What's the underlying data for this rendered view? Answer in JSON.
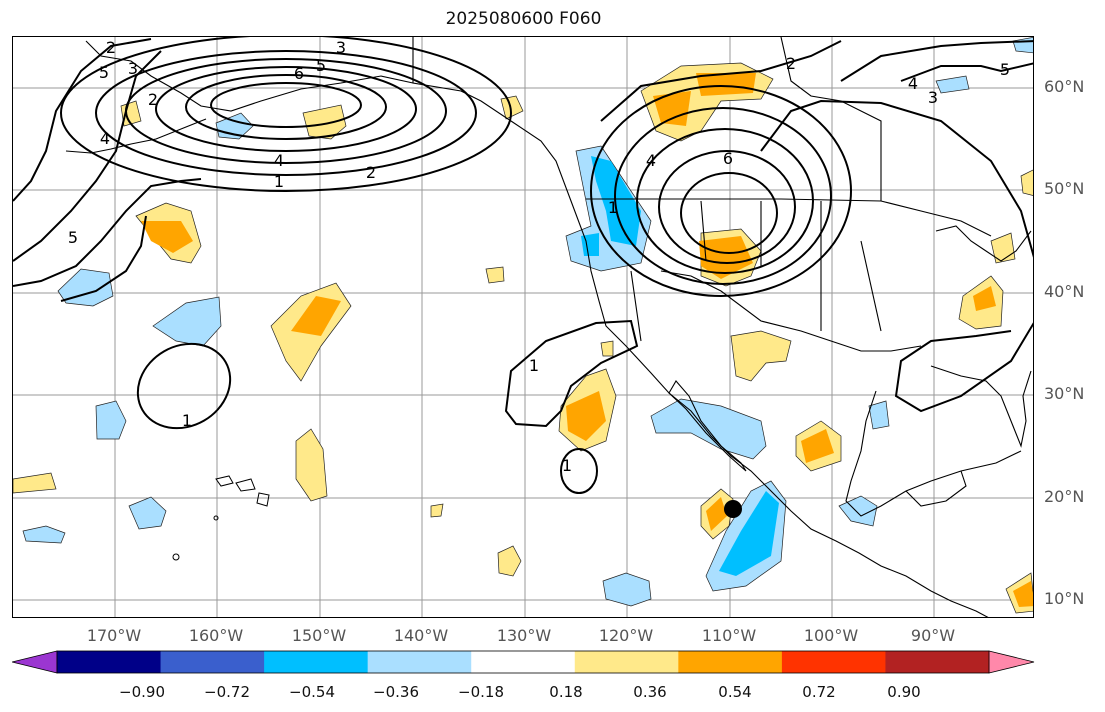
{
  "title": "2025080600 F060",
  "lat_labels": [
    "60°N",
    "50°N",
    "40°N",
    "30°N",
    "20°N",
    "10°N"
  ],
  "lon_labels": [
    "170°W",
    "160°W",
    "150°W",
    "140°W",
    "130°W",
    "120°W",
    "110°W",
    "100°W",
    "90°W"
  ],
  "contour_labels": [
    {
      "text": "3"
    },
    {
      "text": "6"
    },
    {
      "text": "5"
    },
    {
      "text": "4"
    },
    {
      "text": "2"
    },
    {
      "text": "1"
    },
    {
      "text": "2"
    },
    {
      "text": "5"
    },
    {
      "text": "3"
    },
    {
      "text": "2"
    },
    {
      "text": "4"
    },
    {
      "text": "5"
    },
    {
      "text": "1"
    },
    {
      "text": "1"
    },
    {
      "text": "1"
    },
    {
      "text": "6"
    },
    {
      "text": "4"
    },
    {
      "text": "2"
    },
    {
      "text": "4"
    },
    {
      "text": "3"
    },
    {
      "text": "5"
    },
    {
      "text": "1"
    }
  ],
  "colorbar": {
    "levels": [
      "−0.90",
      "−0.72",
      "−0.54",
      "−0.36",
      "−0.18",
      "0.18",
      "0.36",
      "0.54",
      "0.72",
      "0.90"
    ],
    "colors": [
      "#9b36d1",
      "#000088",
      "#3a5fcd",
      "#00bfff",
      "#aadfff",
      "#ffffff",
      "#ffe98a",
      "#ffa500",
      "#ff3300",
      "#b22222",
      "#ff88aa"
    ]
  },
  "marker": {
    "lat": 18.7,
    "lon": -109.3
  }
}
